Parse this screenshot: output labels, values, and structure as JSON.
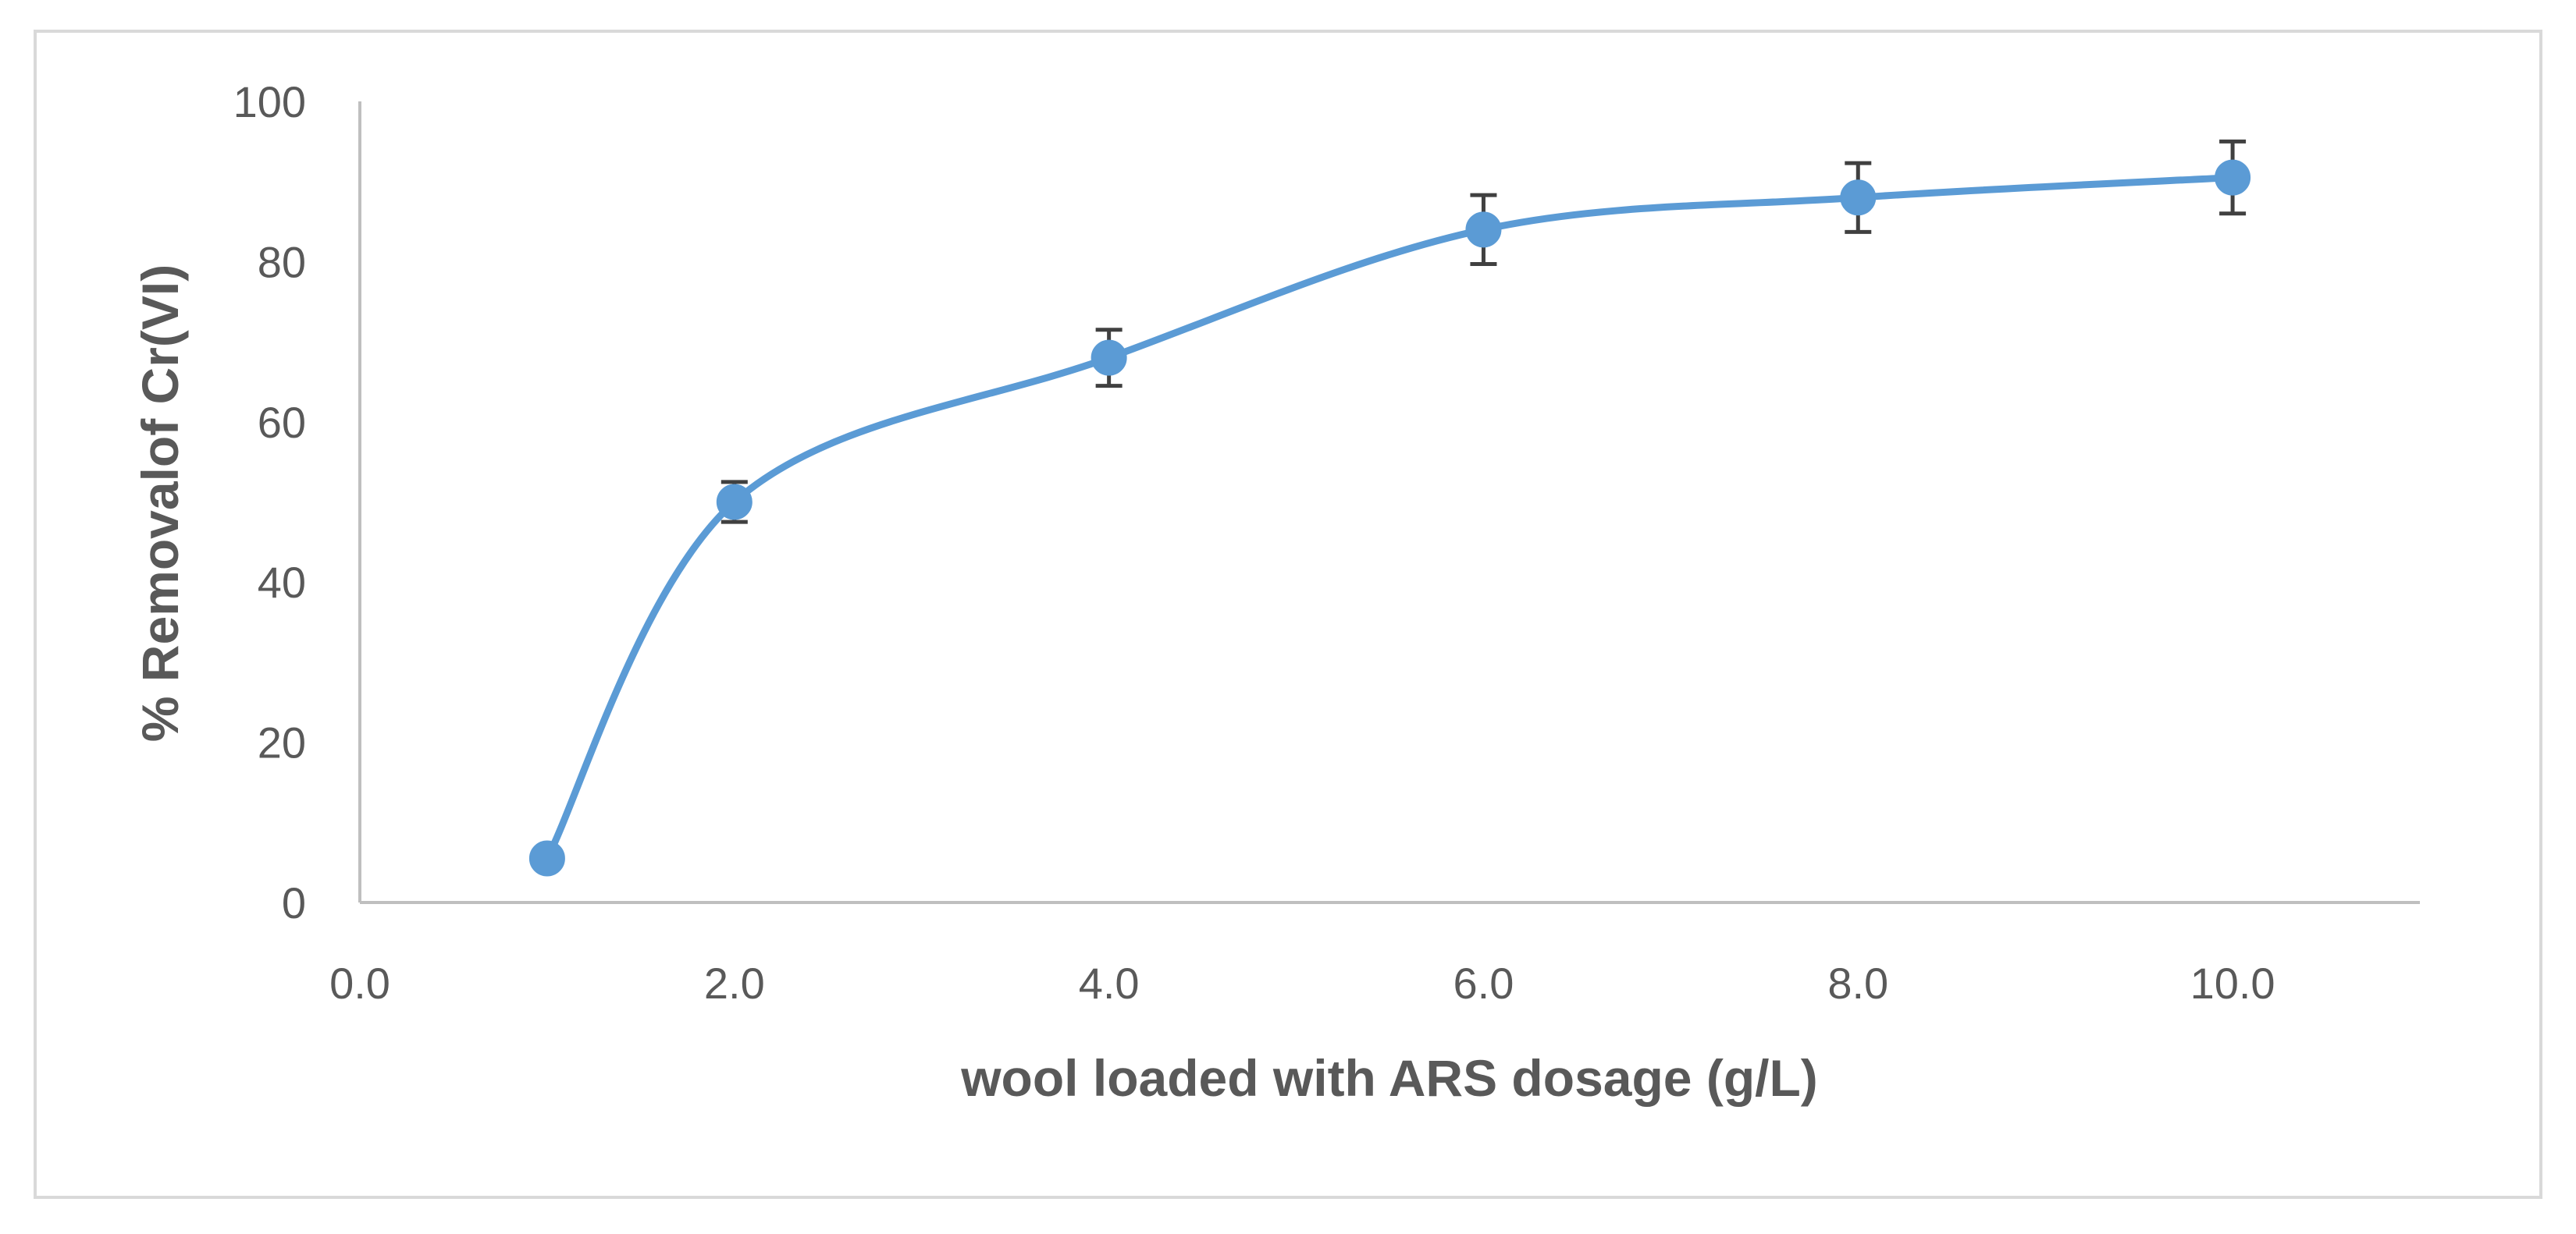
{
  "chart_data": {
    "type": "scatter",
    "title": "",
    "xlabel": "wool loaded with ARS dosage (g/L)",
    "ylabel": "% Removalof Cr(VI)",
    "xlim": [
      0,
      11
    ],
    "ylim": [
      0,
      100
    ],
    "xticks": [
      "0.0",
      "2.0",
      "4.0",
      "6.0",
      "8.0",
      "10.0"
    ],
    "yticks": [
      "0",
      "20",
      "40",
      "60",
      "80",
      "100"
    ],
    "grid": false,
    "legend": "none",
    "smooth_line": true,
    "series": [
      {
        "x": [
          1,
          2,
          4,
          6,
          8,
          10
        ],
        "y": [
          5.5,
          50,
          68,
          84,
          88,
          90.5
        ],
        "error": [
          0,
          2.5,
          3.5,
          4.3,
          4.3,
          4.5
        ]
      }
    ],
    "colors": {
      "series": "#5b9bd5",
      "error_bar": "#404040",
      "axis": "#bfbfbf",
      "text": "#595959",
      "frame": "#d9d9d9"
    }
  }
}
